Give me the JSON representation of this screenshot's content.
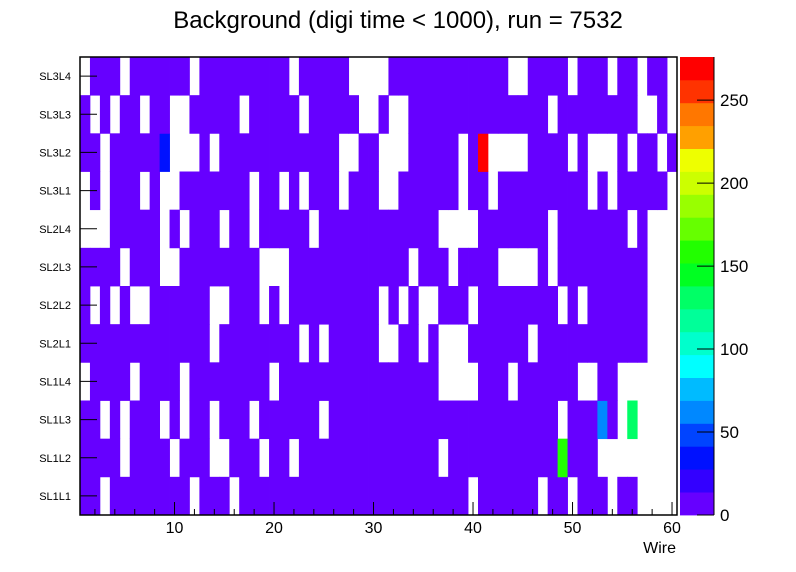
{
  "chart_data": {
    "type": "heatmap",
    "title": "Background (digi time < 1000), run = 7532",
    "xlabel": "Wire",
    "ylabel": "",
    "xlim": [
      0.5,
      60.5
    ],
    "x_ticks": [
      "10",
      "20",
      "30",
      "40",
      "50",
      "60"
    ],
    "x_tick_values": [
      10,
      20,
      30,
      40,
      50,
      60
    ],
    "y_categories": [
      "SL1L1",
      "SL1L2",
      "SL1L3",
      "SL1L4",
      "SL2L1",
      "SL2L2",
      "SL2L3",
      "SL2L4",
      "SL3L1",
      "SL3L2",
      "SL3L3",
      "SL3L4"
    ],
    "n_wires": 60,
    "default_occupied_value": 5,
    "rows": [
      {
        "layer": "SL1L1",
        "empty_wires": [
          3,
          12,
          16,
          40,
          47,
          50,
          54,
          57,
          58,
          59,
          60
        ],
        "special": []
      },
      {
        "layer": "SL1L2",
        "empty_wires": [
          5,
          10,
          14,
          15,
          19,
          22,
          37,
          53,
          54,
          55,
          56,
          57,
          58,
          59,
          60
        ],
        "special": [
          {
            "wire": 49,
            "value": 155
          }
        ]
      },
      {
        "layer": "SL1L3",
        "empty_wires": [
          3,
          5,
          9,
          11,
          14,
          18,
          25,
          49,
          55,
          57,
          58,
          59,
          60
        ],
        "special": [
          {
            "wire": 53,
            "value": 60
          },
          {
            "wire": 56,
            "value": 130
          }
        ]
      },
      {
        "layer": "SL1L4",
        "empty_wires": [
          1,
          6,
          11,
          20,
          37,
          38,
          39,
          40,
          44,
          51,
          52,
          55,
          56,
          57,
          58,
          59,
          60
        ],
        "special": []
      },
      {
        "layer": "SL2L1",
        "empty_wires": [
          14,
          23,
          25,
          31,
          32,
          35,
          37,
          38,
          39,
          46,
          58,
          59,
          60
        ],
        "special": []
      },
      {
        "layer": "SL2L2",
        "empty_wires": [
          2,
          4,
          6,
          7,
          14,
          15,
          19,
          21,
          31,
          33,
          35,
          36,
          40,
          49,
          51,
          58,
          59,
          60
        ],
        "special": []
      },
      {
        "layer": "SL2L3",
        "empty_wires": [
          5,
          9,
          10,
          19,
          20,
          21,
          34,
          38,
          43,
          44,
          45,
          46,
          48,
          58,
          59,
          60
        ],
        "special": []
      },
      {
        "layer": "SL2L4",
        "empty_wires": [
          1,
          2,
          3,
          9,
          11,
          15,
          18,
          24,
          37,
          38,
          39,
          40,
          48,
          56,
          58,
          59,
          60
        ],
        "special": []
      },
      {
        "layer": "SL3L1",
        "empty_wires": [
          1,
          3,
          7,
          9,
          10,
          18,
          21,
          23,
          27,
          31,
          32,
          39,
          42,
          52,
          54,
          60
        ],
        "special": []
      },
      {
        "layer": "SL3L2",
        "empty_wires": [
          3,
          10,
          11,
          12,
          14,
          27,
          28,
          31,
          32,
          33,
          39,
          42,
          43,
          44,
          45,
          50,
          52,
          53,
          54,
          56,
          59
        ],
        "special": [
          {
            "wire": 9,
            "value": 35
          },
          {
            "wire": 41,
            "value": 270
          }
        ]
      },
      {
        "layer": "SL3L3",
        "empty_wires": [
          2,
          4,
          7,
          10,
          11,
          17,
          23,
          29,
          30,
          32,
          33,
          48,
          57,
          58,
          60
        ],
        "special": []
      },
      {
        "layer": "SL3L4",
        "empty_wires": [
          1,
          5,
          12,
          22,
          28,
          29,
          30,
          31,
          44,
          45,
          50,
          54,
          57,
          60
        ],
        "special": []
      }
    ],
    "zlim": [
      0,
      276
    ],
    "z_ticks": [
      "0",
      "50",
      "100",
      "150",
      "200",
      "250"
    ],
    "z_tick_values": [
      0,
      50,
      100,
      150,
      200,
      250
    ],
    "palette": [
      "#6600ff",
      "#3300ff",
      "#0011ff",
      "#0044ff",
      "#0088ff",
      "#00bbff",
      "#00ffff",
      "#00ffcc",
      "#00ff99",
      "#00ff66",
      "#00ff22",
      "#22ff00",
      "#66ff00",
      "#99ff00",
      "#ccff00",
      "#eeff00",
      "#ffa000",
      "#ff7700",
      "#ff3300",
      "#ff0000"
    ],
    "legend": "color palette on right"
  }
}
